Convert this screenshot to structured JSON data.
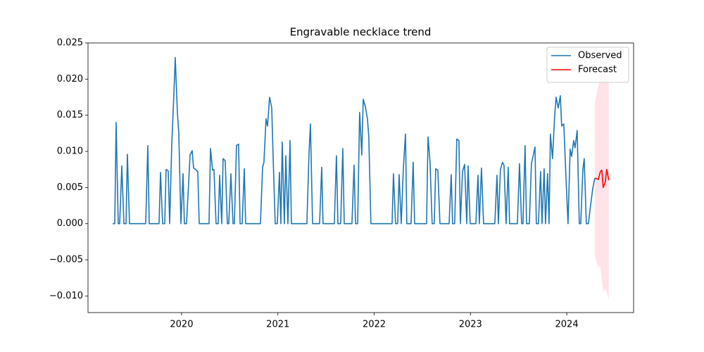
{
  "chart_data": {
    "type": "line",
    "title": "Engravable necklace trend",
    "xlim": [
      2019.028,
      2024.694
    ],
    "xticks": [
      2020,
      2021,
      2022,
      2023,
      2024
    ],
    "ylim": [
      -0.0123,
      0.025
    ],
    "yticks": [
      {
        "value": -0.01,
        "label": "−0.010"
      },
      {
        "value": -0.005,
        "label": "−0.005"
      },
      {
        "value": 0,
        "label": "0.000"
      },
      {
        "value": 0.005,
        "label": "0.005"
      },
      {
        "value": 0.01,
        "label": "0.010"
      },
      {
        "value": 0.015,
        "label": "0.015"
      },
      {
        "value": 0.02,
        "label": "0.020"
      },
      {
        "value": 0.025,
        "label": "0.025"
      }
    ],
    "grid": false,
    "legend": "upper right",
    "series": [
      {
        "name": "Observed",
        "color": "#1f77b4",
        "x": [
          2019.284,
          2019.306,
          2019.32,
          2019.342,
          2019.357,
          2019.379,
          2019.401,
          2019.423,
          2019.437,
          2019.459,
          2019.627,
          2019.649,
          2019.664,
          2019.766,
          2019.781,
          2019.803,
          2019.825,
          2019.839,
          2019.861,
          2019.876,
          2019.898,
          2019.92,
          2019.934,
          2019.956,
          2019.971,
          2019.993,
          2020.015,
          2020.029,
          2020.051,
          2020.088,
          2020.11,
          2020.124,
          2020.146,
          2020.168,
          2020.183,
          2020.285,
          2020.3,
          2020.322,
          2020.336,
          2020.358,
          2020.38,
          2020.395,
          2020.417,
          2020.431,
          2020.453,
          2020.475,
          2020.49,
          2020.512,
          2020.534,
          2020.548,
          2020.57,
          2020.592,
          2020.607,
          2020.629,
          2020.651,
          2020.665,
          2020.819,
          2020.841,
          2020.855,
          2020.877,
          2020.892,
          2020.914,
          2020.936,
          2020.95,
          2020.972,
          2020.994,
          2021.016,
          2021.031,
          2021.045,
          2021.067,
          2021.082,
          2021.104,
          2021.126,
          2021.14,
          2021.301,
          2021.323,
          2021.338,
          2021.36,
          2021.433,
          2021.455,
          2021.469,
          2021.586,
          2021.608,
          2021.623,
          2021.652,
          2021.674,
          2021.689,
          2021.769,
          2021.791,
          2021.806,
          2021.828,
          2021.849,
          2021.871,
          2021.886,
          2021.908,
          2021.93,
          2021.944,
          2021.966,
          2022.186,
          2022.2,
          2022.222,
          2022.244,
          2022.259,
          2022.281,
          2022.303,
          2022.325,
          2022.339,
          2022.383,
          2022.405,
          2022.42,
          2022.544,
          2022.559,
          2022.58,
          2022.602,
          2022.624,
          2022.639,
          2022.661,
          2022.683,
          2022.778,
          2022.8,
          2022.814,
          2022.836,
          2022.858,
          2022.88,
          2022.895,
          2022.917,
          2022.939,
          2022.961,
          2022.975,
          2022.997,
          2023.056,
          2023.078,
          2023.092,
          2023.114,
          2023.136,
          2023.253,
          2023.275,
          2023.29,
          2023.311,
          2023.333,
          2023.348,
          2023.37,
          2023.392,
          2023.406,
          2023.487,
          2023.509,
          2023.531,
          2023.545,
          2023.567,
          2023.582,
          2023.611,
          2023.633,
          2023.648,
          2023.67,
          2023.684,
          2023.706,
          2023.728,
          2023.743,
          2023.765,
          2023.779,
          2023.801,
          2023.816,
          2023.83,
          2023.852,
          2023.874,
          2023.889,
          2023.911,
          2023.933,
          2023.947,
          2023.969,
          2023.991,
          2024.013,
          2024.035,
          2024.05,
          2024.072,
          2024.086,
          2024.108,
          2024.13,
          2024.145,
          2024.167,
          2024.181,
          2024.203,
          2024.225,
          2024.247,
          2024.269,
          2024.291
        ],
        "values": [
          0,
          0,
          0.014,
          0,
          0,
          0.008,
          0,
          0,
          0.0096,
          0,
          0,
          0.0108,
          0,
          0,
          0.0071,
          0,
          0,
          0.0075,
          0.0073,
          0,
          0.011,
          0.018,
          0.023,
          0.0155,
          0.0125,
          0,
          0.0069,
          0,
          0,
          0.0095,
          0.0101,
          0.0077,
          0.0075,
          0.0072,
          0,
          0,
          0.0104,
          0.0074,
          0.0075,
          0,
          0,
          0.0067,
          0,
          0.009,
          0.0087,
          0,
          0,
          0.0069,
          0,
          0,
          0.0108,
          0.011,
          0,
          0,
          0.0076,
          0,
          0,
          0.0078,
          0.0085,
          0.0145,
          0.0135,
          0.0175,
          0.016,
          0.0095,
          0,
          0,
          0.0071,
          0,
          0.0113,
          0,
          0.0094,
          0,
          0.0115,
          0,
          0,
          0.0096,
          0.0138,
          0,
          0,
          0.0078,
          0,
          0,
          0.0094,
          0,
          0,
          0.0104,
          0,
          0,
          0.0081,
          0,
          0,
          0.0154,
          0.0095,
          0.0172,
          0.0162,
          0.0145,
          0.012,
          0,
          0,
          0.0069,
          0,
          0,
          0.0068,
          0,
          0.0077,
          0.0124,
          0,
          0,
          0.0085,
          0,
          0,
          0.012,
          0.0085,
          0,
          0,
          0.0076,
          0.0074,
          0,
          0,
          0.0068,
          0,
          0,
          0.0117,
          0.0115,
          0,
          0.0072,
          0.0082,
          0,
          0.008,
          0,
          0,
          0.0067,
          0,
          0.0077,
          0,
          0,
          0.0067,
          0,
          0.0075,
          0.0085,
          0.0081,
          0,
          0.0078,
          0,
          0,
          0.0083,
          0,
          0,
          0.0108,
          0,
          0,
          0.0083,
          0.0092,
          0.0106,
          0,
          0,
          0.0072,
          0,
          0.0076,
          0,
          0.0069,
          0,
          0.0124,
          0.009,
          0.0148,
          0.0175,
          0.016,
          0.0177,
          0.0135,
          0.0138,
          0.0066,
          0,
          0.0103,
          0.0093,
          0.0115,
          0.0105,
          0.0129,
          0,
          0,
          0.0075,
          0.009,
          0,
          0,
          0.0025,
          0.0048,
          0.0063
        ]
      },
      {
        "name": "Forecast",
        "color": "#ff0000",
        "x": [
          2024.291,
          2024.313,
          2024.327,
          2024.349,
          2024.364,
          2024.379,
          2024.401,
          2024.415,
          2024.437
        ],
        "values": [
          0.0063,
          0.0062,
          0.0061,
          0.0072,
          0.0074,
          0.005,
          0.0058,
          0.0075,
          0.006
        ]
      }
    ],
    "forecast_interval": {
      "color": "#ffc0cb",
      "x": [
        2024.291,
        2024.327,
        2024.349,
        2024.379,
        2024.401,
        2024.437
      ],
      "lower": [
        -0.0045,
        -0.006,
        -0.006,
        -0.0095,
        -0.009,
        -0.0105
      ],
      "upper": [
        0.0167,
        0.019,
        0.0205,
        0.021,
        0.021,
        0.021
      ]
    }
  }
}
